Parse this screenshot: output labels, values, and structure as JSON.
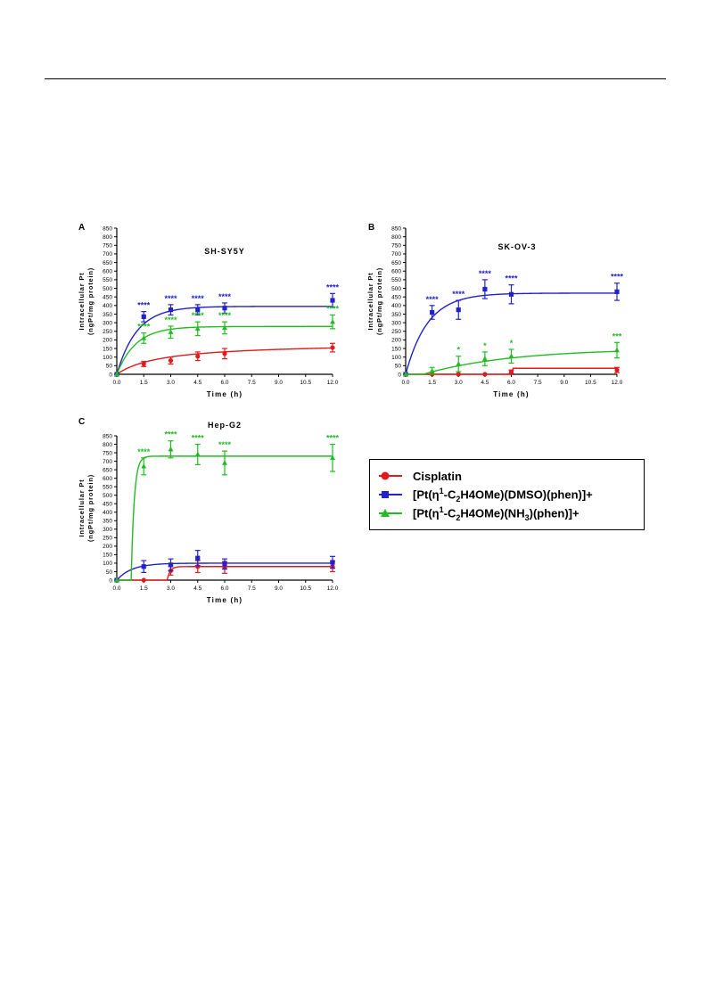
{
  "colors": {
    "Cisplatin": "#e31a1c",
    "DMSO": "#2222cc",
    "NH3": "#22bb22"
  },
  "legend": [
    {
      "key": "Cisplatin",
      "label": "Cisplatin",
      "marker": "circle"
    },
    {
      "key": "DMSO",
      "label_pre": "[Pt(η",
      "label_sup": "1",
      "label_mid": "-C",
      "label_sub1": "2",
      "label_mid2": "H4OMe)(DMSO)(phen)]+",
      "marker": "square"
    },
    {
      "key": "NH3",
      "label_pre": "[Pt(η",
      "label_sup": "1",
      "label_mid": "-C",
      "label_sub1": "2",
      "label_mid2": "H4OMe)(NH",
      "label_sub2": "3",
      "label_post": ")(phen)]+",
      "marker": "triangle"
    }
  ],
  "chart_data": [
    {
      "type": "scatter",
      "panel_letter": "A",
      "title": "SH-SY5Y",
      "xlabel": "Time (h)",
      "ylabel_line1": "Intracellular Pt",
      "ylabel_line2": "(ngPt/mg protein)",
      "xlim": [
        0,
        12
      ],
      "ylim": [
        0,
        850
      ],
      "yticks": [
        "0",
        "50",
        "100",
        "150",
        "200",
        "250",
        "300",
        "350",
        "400",
        "450",
        "500",
        "550",
        "600",
        "650",
        "700",
        "750",
        "800",
        "850"
      ],
      "xticks": [
        "0.0",
        "1.5",
        "3.0",
        "4.5",
        "6.0",
        "7.5",
        "9.0",
        "10.5",
        "12.0"
      ],
      "series": [
        {
          "key": "Cisplatin",
          "x": [
            0,
            1.5,
            3,
            4.5,
            6,
            12
          ],
          "y": [
            0,
            60,
            80,
            105,
            120,
            155
          ],
          "err": [
            0,
            15,
            20,
            25,
            30,
            25
          ],
          "stars": [
            "",
            "",
            "",
            "",
            "",
            ""
          ],
          "fit": "hyp",
          "fit_params": [
            185,
            2.5,
            0
          ]
        },
        {
          "key": "DMSO",
          "x": [
            0,
            1.5,
            3,
            4.5,
            6,
            12
          ],
          "y": [
            0,
            335,
            375,
            375,
            385,
            430
          ],
          "err": [
            0,
            30,
            30,
            30,
            30,
            40
          ],
          "stars": [
            "",
            "****",
            "****",
            "****",
            "****",
            "****"
          ],
          "fit": "exp",
          "fit_params": [
            395,
            0.9,
            0
          ]
        },
        {
          "key": "NH3",
          "x": [
            0,
            1.5,
            3,
            4.5,
            6,
            12
          ],
          "y": [
            0,
            210,
            245,
            265,
            270,
            305
          ],
          "err": [
            0,
            30,
            35,
            40,
            35,
            40
          ],
          "stars": [
            "",
            "****",
            "****",
            "****",
            "****",
            "****"
          ],
          "fit": "exp",
          "fit_params": [
            278,
            0.95,
            0
          ]
        }
      ]
    },
    {
      "type": "scatter",
      "panel_letter": "B",
      "title": "SK-OV-3",
      "xlabel": "Time (h)",
      "ylabel_line1": "Intracellular Pt",
      "ylabel_line2": "(ngPt/mg protein)",
      "xlim": [
        0,
        12
      ],
      "ylim": [
        0,
        850
      ],
      "yticks": [
        "0",
        "50",
        "100",
        "150",
        "200",
        "250",
        "300",
        "350",
        "400",
        "450",
        "500",
        "550",
        "600",
        "650",
        "700",
        "750",
        "800",
        "850"
      ],
      "xticks": [
        "0.0",
        "1.5",
        "3.0",
        "4.5",
        "6.0",
        "7.5",
        "9.0",
        "10.5",
        "12.0"
      ],
      "series": [
        {
          "key": "Cisplatin",
          "x": [
            0,
            1.5,
            3,
            4.5,
            6,
            12
          ],
          "y": [
            0,
            0,
            0,
            0,
            15,
            25
          ],
          "err": [
            0,
            0,
            0,
            0,
            10,
            15
          ],
          "stars": [
            "",
            "",
            "",
            "",
            "",
            ""
          ],
          "fit": "step",
          "fit_params": [
            35,
            6.1,
            0
          ]
        },
        {
          "key": "DMSO",
          "x": [
            0,
            1.5,
            3,
            4.5,
            6,
            12
          ],
          "y": [
            0,
            360,
            375,
            495,
            465,
            480
          ],
          "err": [
            0,
            40,
            55,
            55,
            55,
            50
          ],
          "stars": [
            "",
            "****",
            "****",
            "****",
            "****",
            "****"
          ],
          "fit": "exp",
          "fit_params": [
            472,
            0.8,
            0
          ]
        },
        {
          "key": "NH3",
          "x": [
            0,
            1.5,
            3,
            4.5,
            6,
            12
          ],
          "y": [
            0,
            20,
            60,
            90,
            105,
            140
          ],
          "err": [
            0,
            20,
            45,
            40,
            40,
            45
          ],
          "stars": [
            "",
            "",
            "*",
            "*",
            "*",
            "***"
          ],
          "fit": "exp",
          "fit_params": [
            150,
            0.2,
            1.0
          ]
        }
      ]
    },
    {
      "type": "scatter",
      "panel_letter": "C",
      "title": "Hep-G2",
      "xlabel": "Time (h)",
      "ylabel_line1": "Intracellular Pt",
      "ylabel_line2": "(ngPt/mg protein)",
      "xlim": [
        0,
        12
      ],
      "ylim": [
        0,
        850
      ],
      "yticks": [
        "0",
        "50",
        "100",
        "150",
        "200",
        "250",
        "300",
        "350",
        "400",
        "450",
        "500",
        "550",
        "600",
        "650",
        "700",
        "750",
        "800",
        "850"
      ],
      "xticks": [
        "0.0",
        "1.5",
        "3.0",
        "4.5",
        "6.0",
        "7.5",
        "9.0",
        "10.5",
        "12.0"
      ],
      "series": [
        {
          "key": "Cisplatin",
          "x": [
            0,
            1.5,
            3,
            4.5,
            6,
            12
          ],
          "y": [
            0,
            0,
            55,
            80,
            75,
            80
          ],
          "err": [
            0,
            0,
            25,
            35,
            35,
            30
          ],
          "stars": [
            "",
            "",
            "",
            "",
            "",
            ""
          ],
          "fit": "exp",
          "fit_params": [
            80,
            6,
            2.8
          ]
        },
        {
          "key": "DMSO",
          "x": [
            0,
            1.5,
            3,
            4.5,
            6,
            12
          ],
          "y": [
            0,
            80,
            90,
            130,
            95,
            105
          ],
          "err": [
            0,
            35,
            35,
            45,
            30,
            35
          ],
          "stars": [
            "",
            "",
            "",
            "",
            "",
            ""
          ],
          "fit": "exp",
          "fit_params": [
            100,
            1.2,
            0
          ]
        },
        {
          "key": "NH3",
          "x": [
            0,
            1.5,
            3,
            4.5,
            6,
            12
          ],
          "y": [
            0,
            670,
            770,
            740,
            690,
            720
          ],
          "err": [
            0,
            50,
            50,
            60,
            70,
            80
          ],
          "stars": [
            "",
            "****",
            "****",
            "****",
            "****",
            "****"
          ],
          "fit": "exp",
          "fit_params": [
            730,
            6,
            0.8
          ]
        }
      ]
    }
  ]
}
